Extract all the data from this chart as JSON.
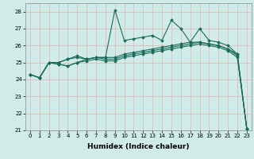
{
  "title": "",
  "xlabel": "Humidex (Indice chaleur)",
  "ylabel": "",
  "bg_color": "#d0ece8",
  "line_color": "#1a6b5a",
  "grid_color": "#e8b0b0",
  "xlim": [
    -0.5,
    23.5
  ],
  "ylim": [
    21,
    28.5
  ],
  "yticks": [
    21,
    22,
    23,
    24,
    25,
    26,
    27,
    28
  ],
  "xticks": [
    0,
    1,
    2,
    3,
    4,
    5,
    6,
    7,
    8,
    9,
    10,
    11,
    12,
    13,
    14,
    15,
    16,
    17,
    18,
    19,
    20,
    21,
    22,
    23
  ],
  "series": [
    [
      24.3,
      24.1,
      25.0,
      25.0,
      25.2,
      25.4,
      25.2,
      25.3,
      25.3,
      28.1,
      26.3,
      26.4,
      26.5,
      26.6,
      26.3,
      27.5,
      27.0,
      26.2,
      27.0,
      26.3,
      26.2,
      26.0,
      25.5,
      21.1
    ],
    [
      24.3,
      24.1,
      25.0,
      25.0,
      25.2,
      25.3,
      25.2,
      25.3,
      25.3,
      25.3,
      25.5,
      25.6,
      25.7,
      25.8,
      25.9,
      26.0,
      26.1,
      26.2,
      26.2,
      26.1,
      26.0,
      25.8,
      25.5,
      21.1
    ],
    [
      24.3,
      24.1,
      25.0,
      24.9,
      24.8,
      25.0,
      25.2,
      25.3,
      25.2,
      25.2,
      25.4,
      25.5,
      25.6,
      25.7,
      25.8,
      25.9,
      26.0,
      26.1,
      26.2,
      26.1,
      26.0,
      25.8,
      25.4,
      21.1
    ],
    [
      24.3,
      24.1,
      25.0,
      24.9,
      24.8,
      25.0,
      25.1,
      25.2,
      25.1,
      25.1,
      25.3,
      25.4,
      25.5,
      25.6,
      25.7,
      25.8,
      25.9,
      26.0,
      26.1,
      26.0,
      25.9,
      25.7,
      25.3,
      21.1
    ]
  ],
  "marker": "D",
  "markersize": 1.8,
  "linewidth": 0.8,
  "tick_fontsize": 5,
  "xlabel_fontsize": 6.5
}
